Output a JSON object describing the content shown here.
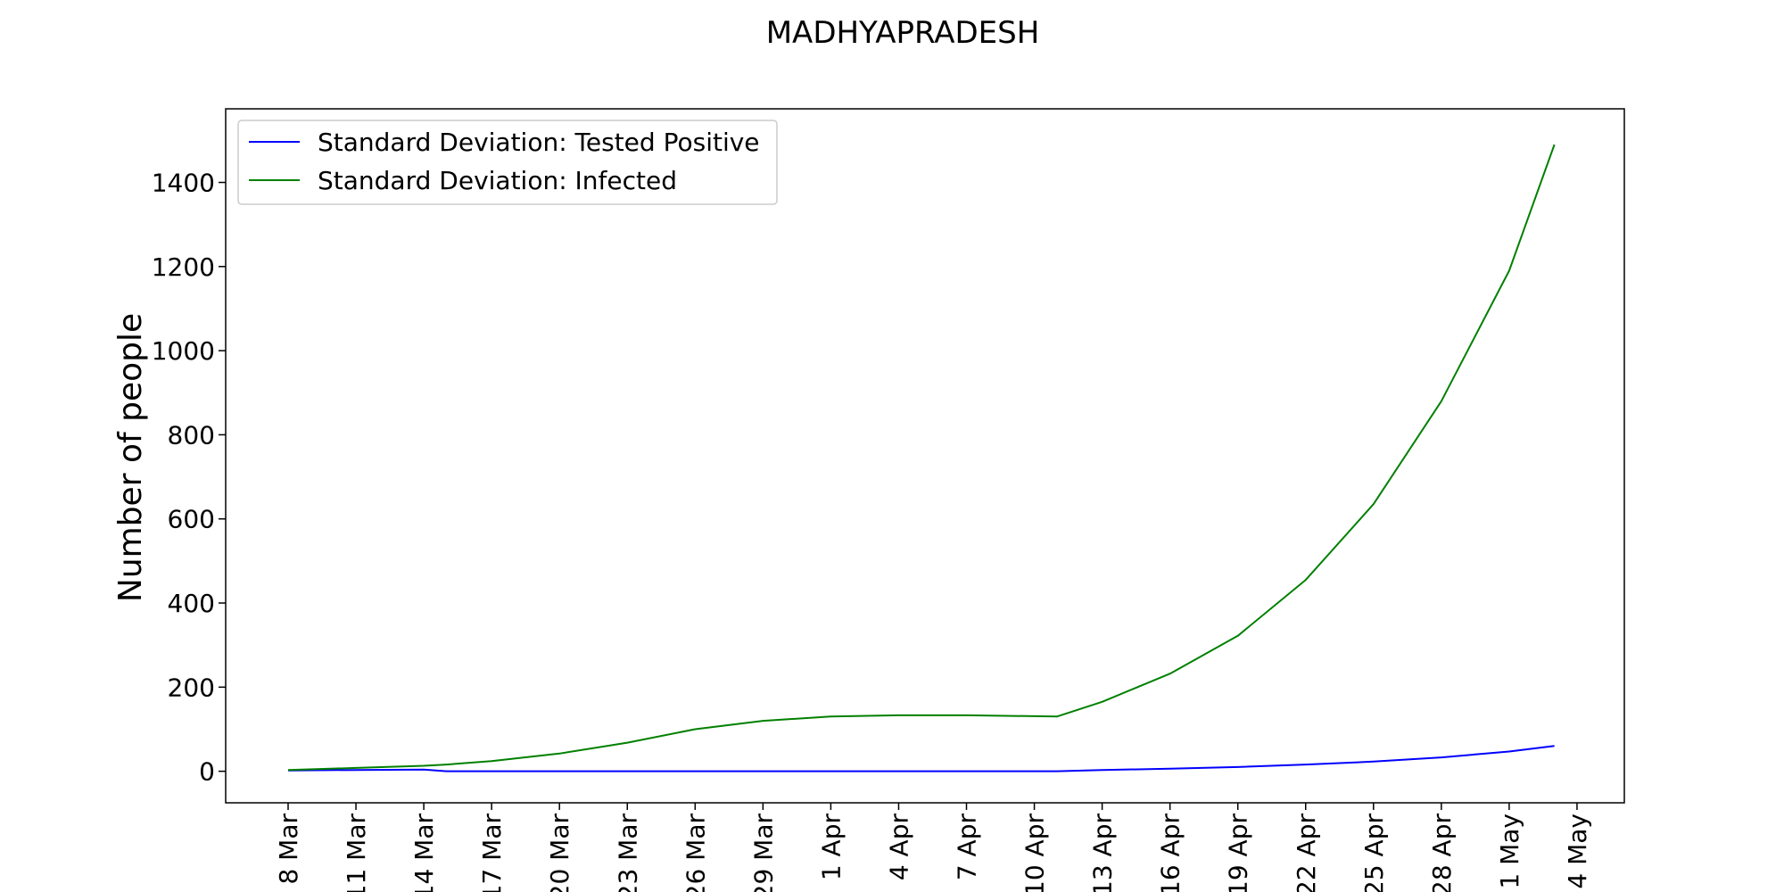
{
  "chart_data": {
    "type": "line",
    "title": "MADHYAPRADESH",
    "xlabel": "",
    "ylabel": "Number of people",
    "legend_position": "top-left",
    "grid": false,
    "ylim": [
      -75,
      1575
    ],
    "yticks": [
      0,
      200,
      400,
      600,
      800,
      1000,
      1200,
      1400
    ],
    "xticks": [
      "8 Mar",
      "11 Mar",
      "14 Mar",
      "17 Mar",
      "20 Mar",
      "23 Mar",
      "26 Mar",
      "29 Mar",
      "1 Apr",
      "4 Apr",
      "7 Apr",
      "10 Apr",
      "13 Apr",
      "16 Apr",
      "19 Apr",
      "22 Apr",
      "25 Apr",
      "28 Apr",
      "1 May",
      "4 May"
    ],
    "x": [
      "8 Mar",
      "11 Mar",
      "14 Mar",
      "15 Mar",
      "17 Mar",
      "20 Mar",
      "23 Mar",
      "26 Mar",
      "29 Mar",
      "1 Apr",
      "4 Apr",
      "7 Apr",
      "10 Apr",
      "11 Apr",
      "13 Apr",
      "16 Apr",
      "19 Apr",
      "22 Apr",
      "25 Apr",
      "28 Apr",
      "1 May",
      "3 May"
    ],
    "series": [
      {
        "name": "Standard Deviation: Tested Positive",
        "color": "#0000ff",
        "values": [
          2,
          3,
          4,
          0,
          0,
          0,
          0,
          0,
          0,
          0,
          0,
          0,
          0,
          0,
          3,
          6,
          10,
          16,
          23,
          33,
          47,
          60
        ]
      },
      {
        "name": "Standard Deviation: Infected",
        "color": "#008000",
        "values": [
          3,
          8,
          13,
          16,
          24,
          42,
          68,
          100,
          120,
          130,
          133,
          133,
          131,
          130,
          165,
          232,
          322,
          455,
          635,
          880,
          1190,
          1490
        ]
      }
    ]
  }
}
